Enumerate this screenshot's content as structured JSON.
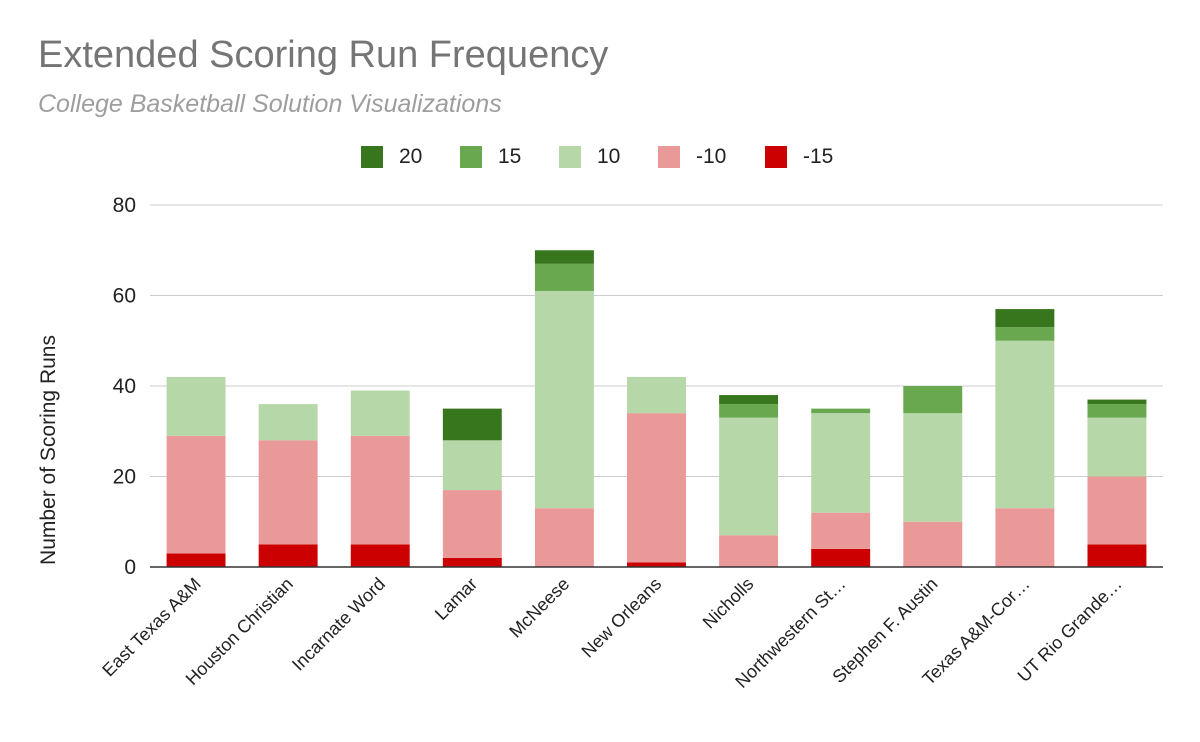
{
  "chart_data": {
    "type": "bar",
    "stacked": true,
    "title": "Extended Scoring Run Frequency",
    "subtitle": "College Basketball Solution Visualizations",
    "xlabel": "",
    "ylabel": "Number of Scoring Runs",
    "ylim": [
      0,
      80
    ],
    "yticks": [
      0,
      20,
      40,
      60,
      80
    ],
    "grid": true,
    "legend_position": "top",
    "categories": [
      "East Texas A&M",
      "Houston Christian",
      "Incarnate Word",
      "Lamar",
      "McNeese",
      "New Orleans",
      "Nicholls",
      "Northwestern St…",
      "Stephen F. Austin",
      "Texas A&M-Cor…",
      "UT Rio Grande…"
    ],
    "series": [
      {
        "name": "-15",
        "color": "#cc0000",
        "values": [
          3,
          5,
          5,
          2,
          0,
          1,
          0,
          4,
          0,
          0,
          5
        ]
      },
      {
        "name": "-10",
        "color": "#ea9999",
        "values": [
          26,
          23,
          24,
          15,
          13,
          33,
          7,
          8,
          10,
          13,
          15
        ]
      },
      {
        "name": "10",
        "color": "#b6d7a8",
        "values": [
          13,
          8,
          10,
          11,
          48,
          8,
          26,
          22,
          24,
          37,
          13
        ]
      },
      {
        "name": "15",
        "color": "#6aa84f",
        "values": [
          0,
          0,
          0,
          0,
          6,
          0,
          3,
          1,
          6,
          3,
          3
        ]
      },
      {
        "name": "20",
        "color": "#38761d",
        "values": [
          0,
          0,
          0,
          7,
          3,
          0,
          2,
          0,
          0,
          4,
          1
        ]
      }
    ],
    "legend_order": [
      "20",
      "15",
      "10",
      "-10",
      "-15"
    ]
  }
}
